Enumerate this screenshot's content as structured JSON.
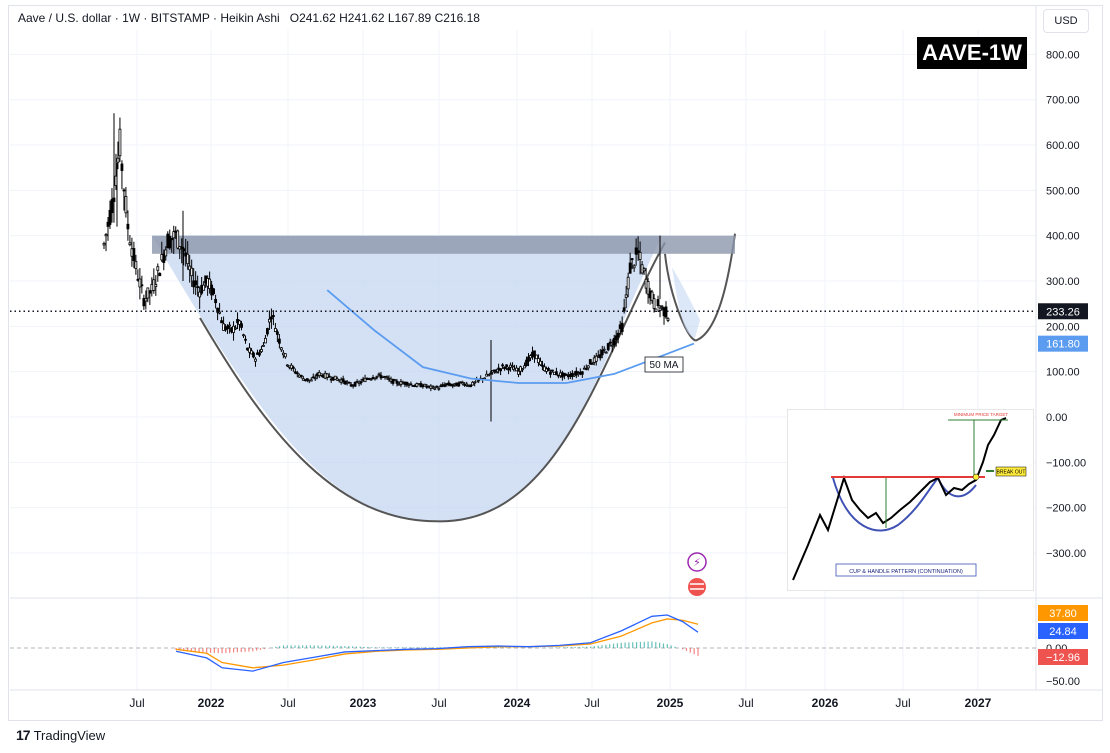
{
  "header": {
    "symbol": "Aave / U.S. dollar",
    "interval": "1W",
    "exchange": "BITSTAMP",
    "chart_style": "Heikin Ashi",
    "ohlc": [
      {
        "k": "O",
        "v": "241.62"
      },
      {
        "k": "H",
        "v": "241.62"
      },
      {
        "k": "L",
        "v": "167.89"
      },
      {
        "k": "C",
        "v": "216.18"
      }
    ]
  },
  "currency_badge": "USD",
  "title_box": "AAVE-1W",
  "annotations": {
    "ma_label": "50 MA",
    "inset_caption": "CUP & HANDLE PATTERN (CONTINUATION)",
    "inset_target_label": "MINIMUM PRICE TARGET",
    "inset_breakout_label": "BREAK OUT"
  },
  "footer": {
    "brand": "TradingView",
    "logo_glyph": "17"
  },
  "colors": {
    "candle": "#000000",
    "cup_fill": "#c5d7f2",
    "resistance_band": "#8c97ab",
    "ma_line": "#5b9cf0",
    "macd_line": "#2962ff",
    "signal_line": "#ff9800",
    "hist_pos": "#26a69a",
    "hist_neg": "#ef5350"
  },
  "chart_data": [
    {
      "type": "candlestick",
      "title": "Aave / U.S. dollar · 1W · BITSTAMP · Heikin Ashi",
      "x_ticks": [
        "Jul",
        "2022",
        "Jul",
        "2023",
        "Jul",
        "2024",
        "Jul",
        "2025",
        "Jul",
        "2026",
        "Jul",
        "2027"
      ],
      "y_ticks": [
        "800.00",
        "700.00",
        "600.00",
        "500.00",
        "400.00",
        "300.00",
        "200.00",
        "100.00",
        "0.00",
        "−100.00",
        "−200.00",
        "−300.00"
      ],
      "ylim": [
        -370,
        860
      ],
      "price_labels": [
        {
          "value": 233.26,
          "label": "233.26",
          "style": "dotted-line",
          "color": "#131722"
        },
        {
          "value": 161.8,
          "label": "161.80",
          "series": "50 MA",
          "color": "#5b9cf0"
        }
      ],
      "price_path_points": [
        [
          0,
          380
        ],
        [
          1,
          470
        ],
        [
          2,
          600
        ],
        [
          3,
          420
        ],
        [
          4,
          330
        ],
        [
          5,
          260
        ],
        [
          6,
          280
        ],
        [
          7,
          330
        ],
        [
          8,
          390
        ],
        [
          9,
          400
        ],
        [
          10,
          370
        ],
        [
          11,
          310
        ],
        [
          12,
          280
        ],
        [
          13,
          300
        ],
        [
          14,
          260
        ],
        [
          15,
          200
        ],
        [
          16,
          190
        ],
        [
          17,
          210
        ],
        [
          18,
          150
        ],
        [
          19,
          130
        ],
        [
          20,
          155
        ],
        [
          21,
          230
        ],
        [
          22,
          170
        ],
        [
          23,
          120
        ],
        [
          24,
          100
        ],
        [
          25,
          85
        ],
        [
          26,
          80
        ],
        [
          27,
          95
        ],
        [
          28,
          90
        ],
        [
          29,
          85
        ],
        [
          30,
          80
        ],
        [
          31,
          70
        ],
        [
          32,
          75
        ],
        [
          33,
          85
        ],
        [
          34,
          90
        ],
        [
          35,
          90
        ],
        [
          36,
          80
        ],
        [
          37,
          75
        ],
        [
          38,
          75
        ],
        [
          39,
          70
        ],
        [
          40,
          70
        ],
        [
          41,
          65
        ],
        [
          42,
          65
        ],
        [
          43,
          72
        ],
        [
          44,
          70
        ],
        [
          45,
          75
        ],
        [
          46,
          70
        ],
        [
          47,
          80
        ],
        [
          48,
          90
        ],
        [
          49,
          100
        ],
        [
          50,
          110
        ],
        [
          51,
          110
        ],
        [
          52,
          100
        ],
        [
          53,
          120
        ],
        [
          54,
          140
        ],
        [
          55,
          110
        ],
        [
          56,
          100
        ],
        [
          57,
          95
        ],
        [
          58,
          90
        ],
        [
          59,
          95
        ],
        [
          60,
          100
        ],
        [
          61,
          120
        ],
        [
          62,
          130
        ],
        [
          63,
          150
        ],
        [
          64,
          170
        ],
        [
          65,
          200
        ],
        [
          66,
          330
        ],
        [
          67,
          360
        ],
        [
          68,
          300
        ],
        [
          69,
          250
        ],
        [
          70,
          240
        ],
        [
          71,
          220
        ]
      ],
      "overlays": {
        "resistance_zone": [
          360,
          400
        ],
        "cup_bottom": -230,
        "ma50_points": [
          [
            28,
            280
          ],
          [
            34,
            190
          ],
          [
            40,
            110
          ],
          [
            46,
            85
          ],
          [
            52,
            75
          ],
          [
            58,
            75
          ],
          [
            64,
            95
          ],
          [
            70,
            135
          ],
          [
            74,
            162
          ]
        ]
      }
    },
    {
      "type": "macd",
      "y_ticks": [
        "0.00",
        "−50.00"
      ],
      "ylim": [
        -62,
        60
      ],
      "value_labels": [
        {
          "label": "37.80",
          "series": "signal",
          "color": "#ff9800"
        },
        {
          "label": "24.84",
          "series": "macd",
          "color": "#2962ff"
        },
        {
          "label": "−12.96",
          "series": "histogram",
          "color": "#ef5350"
        }
      ],
      "macd_points": [
        [
          0,
          -5
        ],
        [
          4,
          -15
        ],
        [
          6,
          -30
        ],
        [
          10,
          -35
        ],
        [
          14,
          -22
        ],
        [
          18,
          -14
        ],
        [
          22,
          -6
        ],
        [
          26,
          -4
        ],
        [
          30,
          -2
        ],
        [
          34,
          -1
        ],
        [
          38,
          2
        ],
        [
          42,
          3
        ],
        [
          46,
          2
        ],
        [
          50,
          4
        ],
        [
          54,
          8
        ],
        [
          58,
          26
        ],
        [
          62,
          48
        ],
        [
          64,
          50
        ],
        [
          66,
          40
        ],
        [
          68,
          24
        ]
      ],
      "signal_points": [
        [
          0,
          -2
        ],
        [
          4,
          -8
        ],
        [
          6,
          -22
        ],
        [
          10,
          -30
        ],
        [
          14,
          -26
        ],
        [
          18,
          -18
        ],
        [
          22,
          -9
        ],
        [
          26,
          -5
        ],
        [
          30,
          -3
        ],
        [
          34,
          -2
        ],
        [
          38,
          0
        ],
        [
          42,
          2
        ],
        [
          46,
          2
        ],
        [
          50,
          3
        ],
        [
          54,
          6
        ],
        [
          58,
          18
        ],
        [
          62,
          38
        ],
        [
          64,
          44
        ],
        [
          66,
          42
        ],
        [
          68,
          36
        ]
      ]
    }
  ]
}
